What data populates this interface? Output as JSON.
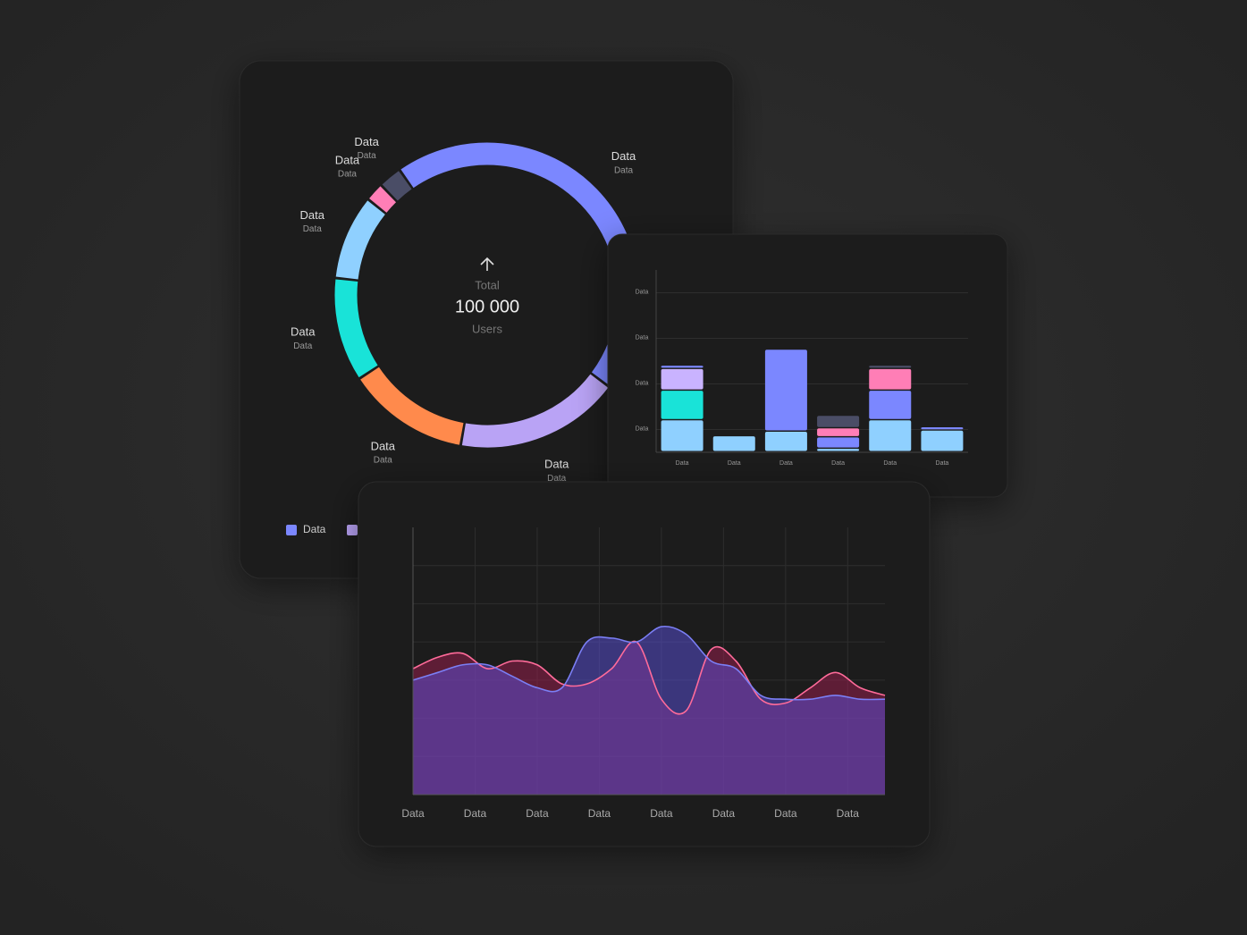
{
  "chart_data": [
    {
      "type": "donut",
      "categories": [
        "Data",
        "Data",
        "Data",
        "Data",
        "Data",
        "Data",
        "Data"
      ],
      "sublabels": [
        "Data",
        "Data",
        "Data",
        "Data",
        "Data",
        "Data",
        "Data"
      ],
      "values": [
        45,
        17.5,
        13,
        11,
        9,
        2,
        2.5
      ],
      "colors": [
        "#7b87ff",
        "#b9a3f5",
        "#ff8a4c",
        "#19e3d8",
        "#8fd0ff",
        "#ff7eb6",
        "#4a4d66"
      ],
      "center_title": "Total",
      "center_value": "100 000",
      "center_unit": "Users"
    },
    {
      "type": "stacked_bar",
      "categories": [
        "Data",
        "Data",
        "Data",
        "Data",
        "Data",
        "Data"
      ],
      "series": [
        {
          "color": "#8fd0ff",
          "values": [
            14,
            7,
            9,
            1.5,
            14,
            9.5
          ]
        },
        {
          "color": "#19e3d8",
          "values": [
            13,
            0,
            0,
            0,
            0,
            0
          ]
        },
        {
          "color": "#c9b3ff",
          "values": [
            9.5,
            0,
            0,
            0,
            0,
            0
          ]
        },
        {
          "color": "#7b87ff",
          "values": [
            1.5,
            0,
            36,
            5,
            13,
            1.5
          ]
        },
        {
          "color": "#ff7eb6",
          "values": [
            0,
            0,
            0,
            4,
            9.5,
            0
          ]
        },
        {
          "color": "#4a4d66",
          "values": [
            0,
            0,
            0,
            5.5,
            1.5,
            0
          ]
        }
      ],
      "ylim": [
        0,
        80
      ],
      "yticks": [
        {
          "value": 10,
          "label": "Data"
        },
        {
          "value": 30,
          "label": "Data"
        },
        {
          "value": 50,
          "label": "Data"
        },
        {
          "value": 70,
          "label": "Data"
        }
      ],
      "grid": true
    },
    {
      "type": "area",
      "x": [
        0,
        0.4,
        0.8,
        1.2,
        1.6,
        2,
        2.4,
        2.8,
        3.2,
        3.6,
        4,
        4.4,
        4.8,
        5.2,
        5.6,
        6,
        6.4,
        6.8,
        7.2,
        7.6
      ],
      "series": [
        {
          "color": "#ff6b9a",
          "values": [
            3.3,
            3.6,
            3.7,
            3.3,
            3.5,
            3.4,
            2.9,
            2.9,
            3.3,
            4.0,
            2.5,
            2.2,
            3.8,
            3.5,
            2.5,
            2.4,
            2.8,
            3.2,
            2.8,
            2.6
          ]
        },
        {
          "color": "#7b7ff5",
          "values": [
            3.0,
            3.2,
            3.4,
            3.4,
            3.1,
            2.8,
            2.8,
            4.0,
            4.1,
            4.0,
            4.4,
            4.2,
            3.5,
            3.3,
            2.6,
            2.5,
            2.5,
            2.6,
            2.5,
            2.5
          ]
        }
      ],
      "xlim": [
        0,
        7.6
      ],
      "xticks": [
        {
          "value": 0,
          "label": "Data"
        },
        {
          "value": 1,
          "label": "Data"
        },
        {
          "value": 2,
          "label": "Data"
        },
        {
          "value": 3,
          "label": "Data"
        },
        {
          "value": 4,
          "label": "Data"
        },
        {
          "value": 5,
          "label": "Data"
        },
        {
          "value": 6,
          "label": "Data"
        },
        {
          "value": 7,
          "label": "Data"
        }
      ],
      "ylim": [
        0,
        7
      ],
      "yticks": [
        1,
        2,
        3,
        4,
        5,
        6
      ],
      "grid": true
    }
  ]
}
